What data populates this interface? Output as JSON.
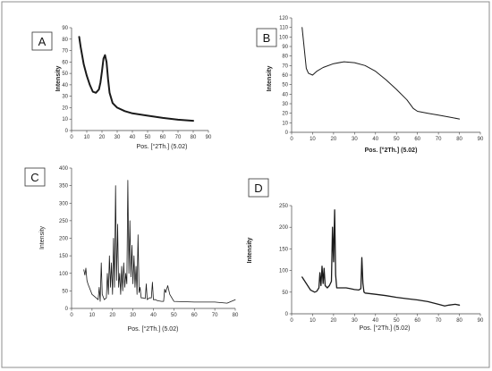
{
  "figure": {
    "border_color": "#8c8c8c",
    "line_color": "#1a1a1a"
  },
  "chart_data": [
    {
      "type": "line",
      "panel": "A",
      "xlabel": "Pos. [°2Th.] (5.02)",
      "ylabel": "Intensity",
      "xlim": [
        0,
        90
      ],
      "ylim": [
        0,
        90
      ],
      "xticks": [
        "0",
        "10",
        "20",
        "30",
        "40",
        "50",
        "60",
        "70",
        "80",
        "90"
      ],
      "yticks": [
        "0",
        "10",
        "20",
        "30",
        "40",
        "50",
        "60",
        "70",
        "80",
        "90"
      ],
      "series": [
        {
          "x": [
            5,
            6,
            8,
            10,
            12,
            14,
            16,
            18,
            19,
            20,
            21,
            22,
            23,
            24,
            25,
            27,
            30,
            35,
            40,
            50,
            60,
            70,
            80
          ],
          "y": [
            82,
            73,
            58,
            48,
            40,
            34,
            33,
            36,
            42,
            52,
            63,
            66,
            60,
            45,
            33,
            24,
            20,
            17,
            15,
            13,
            11,
            9.5,
            8.5
          ]
        }
      ]
    },
    {
      "type": "line",
      "panel": "B",
      "xlabel": "Pos. [°2Th.] (5.02)",
      "ylabel": "Intensity",
      "xlim": [
        0,
        90
      ],
      "ylim": [
        0,
        120
      ],
      "xticks": [
        "0",
        "10",
        "20",
        "30",
        "40",
        "50",
        "60",
        "70",
        "80",
        "90"
      ],
      "yticks": [
        "0",
        "10",
        "20",
        "30",
        "40",
        "50",
        "60",
        "70",
        "80",
        "90",
        "100",
        "110",
        "120"
      ],
      "series": [
        {
          "x": [
            5,
            6,
            7,
            8,
            10,
            12,
            15,
            20,
            25,
            30,
            35,
            40,
            45,
            50,
            55,
            58,
            60,
            65,
            70,
            75,
            80
          ],
          "y": [
            110,
            88,
            67,
            62,
            60,
            64,
            68,
            72,
            74,
            73,
            70,
            64,
            55,
            45,
            34,
            25,
            22,
            20,
            18,
            16,
            14
          ]
        }
      ]
    },
    {
      "type": "line",
      "panel": "C",
      "xlabel": "Pos. [°2Th.] (5.02)",
      "ylabel": "Intensity",
      "xlim": [
        0,
        80
      ],
      "ylim": [
        0,
        400
      ],
      "xticks": [
        "0",
        "10",
        "20",
        "30",
        "40",
        "50",
        "60",
        "70",
        "80"
      ],
      "yticks": [
        "0",
        "50",
        "100",
        "150",
        "200",
        "250",
        "300",
        "350",
        "400"
      ],
      "series": [
        {
          "x": [
            6,
            6.5,
            7,
            7.5,
            8,
            10,
            12,
            13,
            13.5,
            14,
            14.5,
            15,
            16,
            17,
            17.5,
            18,
            18.5,
            19,
            19.5,
            20,
            20.5,
            21,
            21.5,
            22,
            22.5,
            23,
            23.5,
            24,
            24.5,
            25,
            25.5,
            26,
            26.5,
            27,
            27.5,
            28,
            28.5,
            29,
            29.5,
            30,
            30.5,
            31,
            31.5,
            32,
            32.5,
            33,
            33.5,
            34,
            35,
            36,
            36.5,
            37,
            38,
            39,
            39.5,
            40,
            41,
            42,
            44,
            45,
            45.5,
            46,
            47,
            48,
            50,
            60,
            70,
            76,
            80
          ],
          "y": [
            110,
            95,
            115,
            80,
            70,
            40,
            30,
            25,
            60,
            20,
            130,
            40,
            25,
            30,
            100,
            40,
            150,
            60,
            130,
            40,
            200,
            60,
            350,
            80,
            240,
            60,
            100,
            40,
            120,
            50,
            130,
            60,
            100,
            70,
            365,
            100,
            250,
            90,
            180,
            70,
            150,
            60,
            120,
            40,
            210,
            45,
            60,
            30,
            30,
            28,
            70,
            25,
            30,
            30,
            75,
            25,
            25,
            22,
            20,
            20,
            55,
            45,
            65,
            40,
            20,
            18,
            18,
            15,
            25
          ]
        }
      ]
    },
    {
      "type": "line",
      "panel": "D",
      "xlabel": "Pos. [°2Th.] (5.02)",
      "ylabel": "Intensity",
      "xlim": [
        0,
        90
      ],
      "ylim": [
        0,
        250
      ],
      "xticks": [
        "0",
        "10",
        "20",
        "30",
        "40",
        "50",
        "60",
        "70",
        "80",
        "90"
      ],
      "yticks": [
        "0",
        "50",
        "100",
        "150",
        "200",
        "250"
      ],
      "series": [
        {
          "x": [
            5,
            7,
            9,
            11,
            12,
            13,
            13.5,
            14,
            14.5,
            15,
            15.5,
            16,
            17,
            18,
            19,
            19.5,
            20,
            20.5,
            21,
            21.5,
            22,
            24,
            26,
            28,
            30,
            32,
            33,
            33.5,
            34,
            34.5,
            35,
            40,
            45,
            50,
            55,
            60,
            65,
            70,
            73,
            75,
            78,
            80
          ],
          "y": [
            85,
            70,
            55,
            50,
            52,
            60,
            95,
            65,
            110,
            70,
            105,
            65,
            60,
            65,
            75,
            200,
            120,
            240,
            90,
            60,
            60,
            60,
            60,
            58,
            56,
            55,
            58,
            130,
            70,
            50,
            48,
            45,
            42,
            38,
            35,
            32,
            28,
            22,
            18,
            20,
            22,
            20
          ]
        }
      ]
    }
  ]
}
